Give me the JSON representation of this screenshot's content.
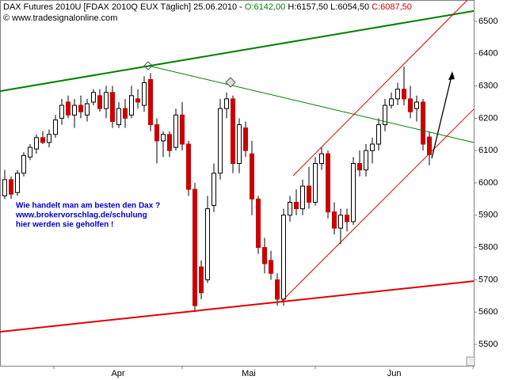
{
  "chart_data": {
    "type": "candlestick",
    "title_parts": [
      {
        "text": "DAX Futures 2010U [FDAX 2010Q EUX  Täglich] 25.06.2010 - ",
        "color": "#000000"
      },
      {
        "text": "O:6142,00",
        "color": "#008000"
      },
      {
        "text": " H:6157,50 L:6054,50 ",
        "color": "#000000"
      },
      {
        "text": "C:6087,50",
        "color": "#cc0000"
      }
    ],
    "subtitle": "© www.tradesignalonline.com",
    "annotation": [
      "Wie handelt man am besten den Dax ?",
      "www.brokervorschlag.de/schulung",
      "hier werden sie geholfen !"
    ],
    "up_color": "#ffffff",
    "down_color": "#cc0000",
    "xlim": [
      -0.75,
      74
    ],
    "xticks": [
      {
        "value": 7.75,
        "label": "Apr"
      },
      {
        "value": 28,
        "label": "Mai"
      },
      {
        "value": 49,
        "label": "Jun"
      },
      73.9
    ],
    "ylim": [
      5434,
      6566
    ],
    "yticks": [
      5500,
      5600,
      5700,
      5800,
      5900,
      6000,
      6100,
      6200,
      6300,
      6400,
      6500
    ],
    "open": [
      5960,
      6010,
      5970,
      6030,
      6080,
      6105,
      6140,
      6125,
      6150,
      6200,
      6250,
      6210,
      6240,
      6210,
      6250,
      6270,
      6230,
      6280,
      6180,
      6230,
      6210,
      6260,
      6240,
      6320,
      6180,
      6130,
      6150,
      6110,
      6210,
      6120,
      5980,
      5740,
      5700,
      5930,
      6030,
      6230,
      6260,
      6060,
      6170,
      6090,
      5950,
      5800,
      5760,
      5700,
      5640,
      5900,
      5940,
      5920,
      5990,
      5940,
      6060,
      6090,
      5910,
      5860,
      5900,
      5880,
      6060,
      6040,
      6100,
      6120,
      6180,
      6240,
      6260,
      6290,
      6260,
      6230,
      6250,
      6142
    ],
    "high": [
      6040,
      6020,
      6040,
      6095,
      6120,
      6150,
      6160,
      6165,
      6210,
      6260,
      6270,
      6260,
      6270,
      6260,
      6290,
      6290,
      6300,
      6300,
      6250,
      6260,
      6300,
      6290,
      6330,
      6340,
      6200,
      6160,
      6160,
      6230,
      6250,
      6130,
      6000,
      5760,
      5960,
      6060,
      6260,
      6280,
      6270,
      6200,
      6190,
      6130,
      5960,
      5830,
      5790,
      5720,
      5920,
      5960,
      5980,
      6010,
      6050,
      6080,
      6110,
      6100,
      5940,
      5920,
      5920,
      6080,
      6100,
      6120,
      6140,
      6200,
      6260,
      6280,
      6310,
      6360,
      6300,
      6270,
      6260,
      6157.5
    ],
    "low": [
      5950,
      5950,
      5960,
      6020,
      6070,
      6090,
      6120,
      6110,
      6140,
      6180,
      6200,
      6170,
      6200,
      6190,
      6240,
      6220,
      6200,
      6170,
      6170,
      6170,
      6200,
      6230,
      6220,
      6160,
      6060,
      6080,
      6080,
      6100,
      6100,
      5960,
      5600,
      5640,
      5690,
      5910,
      6010,
      6200,
      6030,
      6030,
      6080,
      5900,
      5780,
      5720,
      5700,
      5620,
      5620,
      5880,
      5900,
      5900,
      5920,
      5930,
      6040,
      5890,
      5840,
      5810,
      5850,
      5870,
      6020,
      6020,
      6060,
      6100,
      6160,
      6230,
      6240,
      6240,
      6200,
      6190,
      6100,
      6054.5
    ],
    "close": [
      6010,
      5965,
      6030,
      6085,
      6110,
      6140,
      6125,
      6150,
      6195,
      6240,
      6210,
      6240,
      6220,
      6245,
      6280,
      6230,
      6280,
      6190,
      6230,
      6200,
      6270,
      6250,
      6310,
      6180,
      6130,
      6150,
      6100,
      6210,
      6120,
      5980,
      5620,
      5660,
      5920,
      6030,
      6230,
      6260,
      6060,
      6180,
      6100,
      5950,
      5800,
      5750,
      5720,
      5640,
      5900,
      5940,
      5920,
      5990,
      5940,
      6060,
      6090,
      5910,
      5860,
      5900,
      5880,
      6060,
      6040,
      6100,
      6120,
      6180,
      6240,
      6260,
      6290,
      6260,
      6220,
      6250,
      6120,
      6087.5
    ],
    "trendlines": [
      {
        "color": "#008000",
        "width": 2,
        "points": [
          [
            -0.75,
            6284
          ],
          [
            74,
            6532
          ]
        ]
      },
      {
        "color": "#008000",
        "width": 1,
        "points": [
          [
            22.6,
            6363
          ],
          [
            74,
            6125
          ]
        ]
      },
      {
        "color": "#e00000",
        "width": 2,
        "points": [
          [
            -0.75,
            5539
          ],
          [
            74,
            5696
          ]
        ]
      },
      {
        "color": "#e00000",
        "width": 1,
        "points": [
          [
            45.5,
            6022
          ],
          [
            73,
            6566
          ]
        ]
      },
      {
        "color": "#e00000",
        "width": 1,
        "points": [
          [
            43.6,
            5632
          ],
          [
            74,
            6228
          ]
        ]
      }
    ]
  }
}
